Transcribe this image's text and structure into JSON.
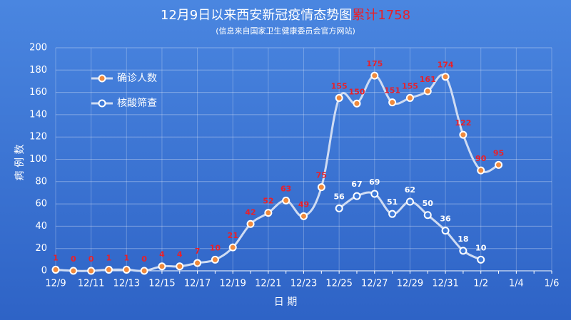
{
  "chart_data": {
    "type": "line",
    "title": "12月9日以来西安新冠疫情态势图",
    "title_highlight": "累计1758",
    "subtitle": "(信息来自国家卫生健康委员会官方网站)",
    "x_label": "日 期",
    "y_label": "病 例 数",
    "categories": [
      "12/9",
      null,
      "12/11",
      null,
      "12/13",
      null,
      "12/15",
      null,
      "12/17",
      null,
      "12/19",
      null,
      "12/21",
      null,
      "12/23",
      null,
      "12/25",
      null,
      "12/27",
      null,
      "12/29",
      null,
      "12/31",
      null,
      "1/2",
      null,
      "1/4",
      null,
      "1/6"
    ],
    "series": [
      {
        "name": "确诊人数",
        "color": "#cfdcf3",
        "marker_color": "#f08a3c",
        "label_color": "#e8202a",
        "values": [
          1,
          0,
          0,
          1,
          1,
          0,
          4,
          4,
          7,
          10,
          21,
          42,
          52,
          63,
          49,
          75,
          155,
          150,
          175,
          151,
          155,
          161,
          174,
          122,
          90,
          95,
          null,
          null,
          null
        ]
      },
      {
        "name": "核酸筛查",
        "color": "#cfdcf3",
        "marker_color": "#3f7ad8",
        "label_color": "#ffffff",
        "values": [
          null,
          null,
          null,
          null,
          null,
          null,
          null,
          null,
          null,
          null,
          null,
          null,
          null,
          null,
          null,
          null,
          56,
          67,
          69,
          51,
          62,
          50,
          36,
          18,
          10,
          null,
          null,
          null,
          null
        ]
      }
    ],
    "ylim": [
      0,
      200
    ],
    "yticks": [
      0,
      20,
      40,
      60,
      80,
      100,
      120,
      140,
      160,
      180,
      200
    ],
    "grid": true,
    "legend": "top-left"
  }
}
